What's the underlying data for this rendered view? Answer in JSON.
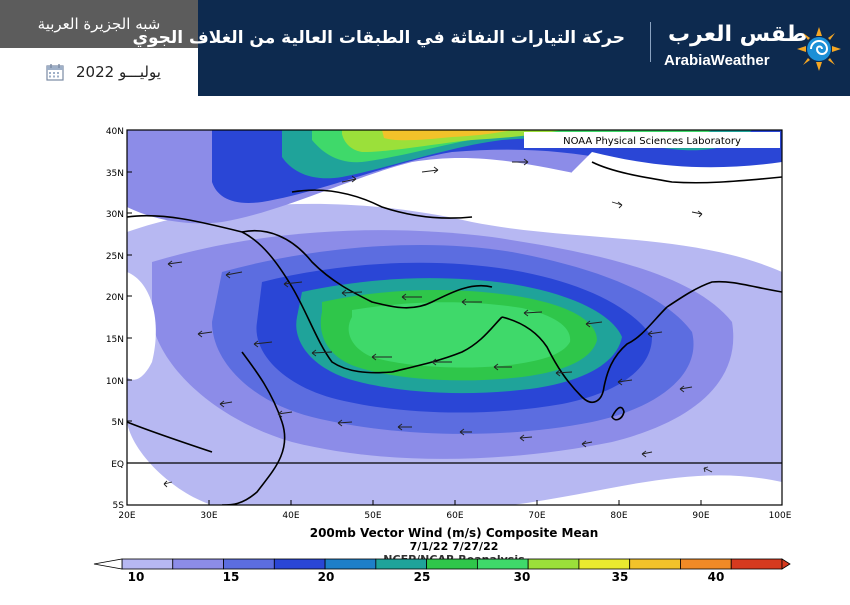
{
  "header": {
    "region": "شبه الجزيرة العربية",
    "date": "يوليـــو 2022",
    "title": "حركة التيارات النفاثة في الطبقات العالية من الغلاف الجوي",
    "logo_ar": "طقس العرب",
    "logo_en": "ArabiaWeather",
    "background_color": "#0d2a4f"
  },
  "map": {
    "credit": "NOAA Physical Sciences Laboratory",
    "lat_labels": [
      "40N",
      "35N",
      "30N",
      "25N",
      "20N",
      "15N",
      "10N",
      "5N",
      "EQ",
      "5S"
    ],
    "lon_labels": [
      "20E",
      "30E",
      "40E",
      "50E",
      "60E",
      "70E",
      "80E",
      "90E",
      "100E"
    ],
    "title_line1": "200mb Vector Wind (m/s) Composite Mean",
    "title_line2": "7/1/22 7/27/22",
    "title_line3": "NCEP/NCAR Reanalysis"
  },
  "colorbar": {
    "labels": [
      "10",
      "15",
      "20",
      "25",
      "30",
      "35",
      "40"
    ],
    "colors": [
      "#b7b8f2",
      "#8c8ce8",
      "#5c6de0",
      "#2a46d6",
      "#1e7fc9",
      "#1fa39a",
      "#2fc64a",
      "#3fd96a",
      "#9be03a",
      "#e9e92f",
      "#f2c22a",
      "#f08a26",
      "#d63a1f"
    ]
  }
}
